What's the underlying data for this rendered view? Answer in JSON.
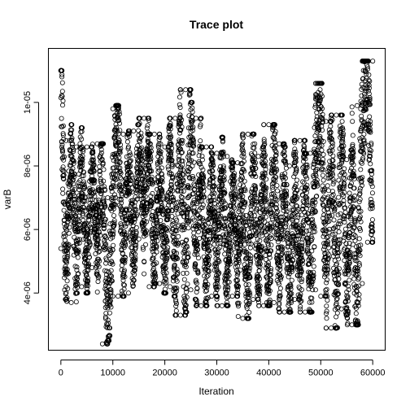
{
  "chart_data": {
    "type": "scatter",
    "title": "Trace plot",
    "xlabel": "Iteration",
    "ylabel": "varB",
    "xlim": [
      -2400,
      62400
    ],
    "ylim": [
      2.2e-06,
      1.17e-05
    ],
    "x_ticks": [
      {
        "value": 0,
        "label": "0"
      },
      {
        "value": 10000,
        "label": "10000"
      },
      {
        "value": 20000,
        "label": "20000"
      },
      {
        "value": 30000,
        "label": "30000"
      },
      {
        "value": 40000,
        "label": "40000"
      },
      {
        "value": 50000,
        "label": "50000"
      },
      {
        "value": 60000,
        "label": "60000"
      }
    ],
    "y_ticks": [
      {
        "value": 4e-06,
        "label": "4e-06"
      },
      {
        "value": 6e-06,
        "label": "6e-06"
      },
      {
        "value": 8e-06,
        "label": "8e-06"
      },
      {
        "value": 1e-05,
        "label": "1e-05"
      }
    ],
    "marker": "open-circle",
    "grid": false,
    "series": [
      {
        "x": [
          0,
          1000,
          2000,
          3000,
          4000,
          5000,
          6000,
          7000,
          8000,
          9000,
          10000,
          11000,
          12000,
          13000,
          14000,
          15000,
          16000,
          17000,
          18000,
          19000,
          20000,
          21000,
          22000,
          23000,
          24000,
          25000,
          26000,
          27000,
          28000,
          29000,
          30000,
          31000,
          32000,
          33000,
          34000,
          35000,
          36000,
          37000,
          38000,
          39000,
          40000,
          41000,
          42000,
          43000,
          44000,
          45000,
          46000,
          47000,
          48000,
          49000,
          50000,
          51000,
          52000,
          53000,
          54000,
          55000,
          56000,
          57000,
          58000,
          59000,
          60000
        ],
        "y": [
          1.1e-05,
          4.2e-06,
          8.8e-06,
          4.5e-06,
          8.6e-06,
          4.4e-06,
          8.2e-06,
          5e-06,
          8.7e-06,
          2.5e-06,
          6.9e-06,
          9.8e-06,
          4.4e-06,
          8.6e-06,
          4.9e-06,
          9.3e-06,
          6e-06,
          9e-06,
          4.4e-06,
          8.4e-06,
          4.3e-06,
          8.9e-06,
          4e-06,
          9.5e-06,
          3.4e-06,
          1.04e-05,
          4.4e-06,
          8.6e-06,
          3.6e-06,
          8.2e-06,
          4.2e-06,
          8.4e-06,
          3.6e-06,
          8e-06,
          4.4e-06,
          7.9e-06,
          3.2e-06,
          9e-06,
          4e-06,
          8.3e-06,
          3.6e-06,
          9.3e-06,
          3.8e-06,
          8.6e-06,
          3.4e-06,
          8e-06,
          3.9e-06,
          8.8e-06,
          3.4e-06,
          8.4e-06,
          1.06e-05,
          4e-06,
          9.4e-06,
          2.9e-06,
          9.6e-06,
          3.5e-06,
          8.2e-06,
          3e-06,
          9.9e-06,
          1.13e-05,
          5.7e-06
        ],
        "lows": [
          5.4e-06,
          3.8e-06,
          3.7e-06,
          4e-06,
          4.2e-06,
          4e-06,
          4.8e-06,
          4.6e-06,
          2.4e-06,
          2.5e-06,
          3.9e-06,
          3.9e-06,
          3.9e-06,
          4e-06,
          4.4e-06,
          5.7e-06,
          5e-06,
          4.2e-06,
          4.4e-06,
          4.3e-06,
          4e-06,
          4.2e-06,
          3.9e-06,
          3.3e-06,
          3.4e-06,
          4.1e-06,
          3.8e-06,
          3.6e-06,
          3.6e-06,
          3.9e-06,
          4.1e-06,
          3.6e-06,
          3.6e-06,
          3.9e-06,
          3.9e-06,
          3.2e-06,
          3.2e-06,
          3.8e-06,
          3.8e-06,
          3.6e-06,
          3.6e-06,
          3.7e-06,
          3.5e-06,
          3.4e-06,
          3.4e-06,
          3.8e-06,
          3.9e-06,
          3.4e-06,
          3.4e-06,
          4.1e-06,
          3.9e-06,
          3.9e-06,
          2.9e-06,
          2.9e-06,
          3.5e-06,
          3.3e-06,
          3e-06,
          3e-06,
          4.3e-06,
          5.6e-06,
          5.6e-06
        ],
        "highs": [
          1.1e-05,
          8.8e-06,
          9.3e-06,
          8.6e-06,
          9.2e-06,
          8.6e-06,
          8.4e-06,
          8.7e-06,
          8.7e-06,
          7e-06,
          9.8e-06,
          9.9e-06,
          9e-06,
          8.6e-06,
          9.1e-06,
          9.3e-06,
          9.5e-06,
          9e-06,
          9e-06,
          8.9e-06,
          8.6e-06,
          9.5e-06,
          9.5e-06,
          1.04e-05,
          1.04e-05,
          1e-05,
          9.5e-06,
          8.6e-06,
          8.6e-06,
          8.4e-06,
          8.4e-06,
          8.9e-06,
          8.3e-06,
          8.1e-06,
          8.1e-06,
          9e-06,
          9e-06,
          9e-06,
          8.3e-06,
          8.6e-06,
          9.3e-06,
          9.3e-06,
          8.7e-06,
          8.6e-06,
          8e-06,
          8.8e-06,
          8.8e-06,
          8.4e-06,
          8.4e-06,
          1.06e-05,
          1.06e-05,
          9.4e-06,
          9.4e-06,
          9.6e-06,
          9.6e-06,
          8.2e-06,
          8.5e-06,
          9.9e-06,
          1.13e-05,
          1.13e-05,
          1.13e-05
        ]
      }
    ]
  }
}
